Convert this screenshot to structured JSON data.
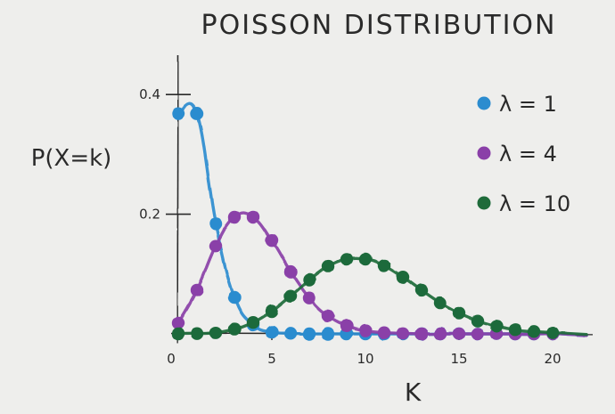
{
  "chart_data": {
    "type": "line",
    "title": "POISSON DISTRIBUTION",
    "xlabel": "K",
    "ylabel": "P(X=k)",
    "xlim": [
      0,
      22
    ],
    "ylim": [
      0,
      0.45
    ],
    "x_ticks": [
      {
        "value": 0,
        "label": "0"
      },
      {
        "value": 5,
        "label": "5"
      },
      {
        "value": 10,
        "label": "10"
      },
      {
        "value": 15,
        "label": "15"
      },
      {
        "value": 20,
        "label": "20"
      }
    ],
    "y_ticks": [
      {
        "value": 0.2,
        "label": "0.2"
      },
      {
        "value": 0.4,
        "label": "0.4"
      }
    ],
    "grid": false,
    "legend_position": "top-right",
    "series": [
      {
        "name": "λ = 1",
        "color": "#2b8ccf",
        "x": [
          0,
          1,
          2,
          3,
          4,
          5,
          6,
          7,
          8,
          9,
          10,
          11,
          12,
          13,
          14,
          15,
          16,
          17,
          18,
          19,
          20
        ],
        "y": [
          0.368,
          0.368,
          0.184,
          0.061,
          0.015,
          0.003,
          0.001,
          0,
          0,
          0,
          0,
          0,
          0,
          0,
          0,
          0,
          0,
          0,
          0,
          0,
          0
        ]
      },
      {
        "name": "λ = 4",
        "color": "#8a3fa8",
        "x": [
          0,
          1,
          2,
          3,
          4,
          5,
          6,
          7,
          8,
          9,
          10,
          11,
          12,
          13,
          14,
          15,
          16,
          17,
          18,
          19,
          20
        ],
        "y": [
          0.018,
          0.073,
          0.147,
          0.195,
          0.195,
          0.156,
          0.104,
          0.06,
          0.03,
          0.013,
          0.005,
          0.002,
          0.001,
          0,
          0,
          0,
          0,
          0,
          0,
          0,
          0
        ]
      },
      {
        "name": "λ = 10",
        "color": "#1e6b3a",
        "x": [
          0,
          1,
          2,
          3,
          4,
          5,
          6,
          7,
          8,
          9,
          10,
          11,
          12,
          13,
          14,
          15,
          16,
          17,
          18,
          19,
          20
        ],
        "y": [
          0,
          0.0005,
          0.002,
          0.008,
          0.019,
          0.038,
          0.063,
          0.09,
          0.113,
          0.125,
          0.125,
          0.114,
          0.095,
          0.073,
          0.052,
          0.035,
          0.022,
          0.013,
          0.007,
          0.004,
          0.002
        ]
      }
    ]
  }
}
